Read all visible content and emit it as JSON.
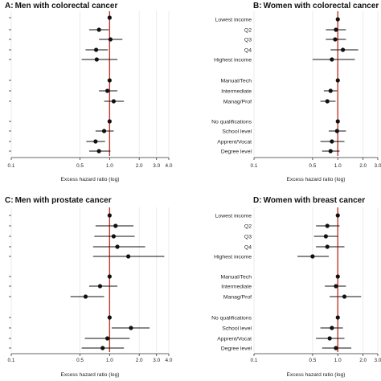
{
  "chart_data": [
    {
      "type": "scatter",
      "letter": "A:",
      "title": "Men with colorectal cancer",
      "xlabel": "Excess hazard ratio (log)",
      "xscale": "log",
      "xticks": [
        0.1,
        0.5,
        1.0,
        2.0,
        3.0,
        4.0
      ],
      "tick_labels": [
        "0.1",
        "0.5",
        "1.0",
        "2.0",
        "3.0",
        "4.0"
      ],
      "reference_line": 1.0,
      "row_labels": [],
      "groups": [
        [
          {
            "hr": 1.0,
            "lo": 1.0,
            "hi": 1.0
          },
          {
            "hr": 0.78,
            "lo": 0.62,
            "hi": 0.98
          },
          {
            "hr": 1.02,
            "lo": 0.78,
            "hi": 1.35
          },
          {
            "hr": 0.73,
            "lo": 0.57,
            "hi": 0.96
          },
          {
            "hr": 0.74,
            "lo": 0.52,
            "hi": 1.2
          }
        ],
        [
          {
            "hr": 1.0,
            "lo": 1.0,
            "hi": 1.0
          },
          {
            "hr": 0.95,
            "lo": 0.78,
            "hi": 1.2
          },
          {
            "hr": 1.1,
            "lo": 0.88,
            "hi": 1.4
          }
        ],
        [
          {
            "hr": 1.0,
            "lo": 1.0,
            "hi": 1.0
          },
          {
            "hr": 0.88,
            "lo": 0.72,
            "hi": 1.1
          },
          {
            "hr": 0.72,
            "lo": 0.58,
            "hi": 0.9
          },
          {
            "hr": 0.78,
            "lo": 0.62,
            "hi": 1.02
          }
        ]
      ]
    },
    {
      "type": "scatter",
      "letter": "B:",
      "title": "Women with colorectal cancer",
      "xlabel": "Excess hazard ratio (log)",
      "xscale": "log",
      "xticks": [
        0.1,
        0.5,
        1.0,
        2.0,
        3.0
      ],
      "tick_labels": [
        "0.1",
        "0.5",
        "1.0",
        "2.0",
        "3.0"
      ],
      "reference_line": 1.0,
      "row_labels": [
        [
          "Lowest income",
          "Q2",
          "Q3",
          "Q4",
          "Highest income"
        ],
        [
          "Manual/Tech",
          "Intermediate",
          "Manag/Prof"
        ],
        [
          "No qualifications",
          "School level",
          "Apprent/Vocat",
          "Degree level"
        ]
      ],
      "groups": [
        [
          {
            "hr": 1.0,
            "lo": 1.0,
            "hi": 1.0
          },
          {
            "hr": 0.95,
            "lo": 0.72,
            "hi": 1.25
          },
          {
            "hr": 0.93,
            "lo": 0.72,
            "hi": 1.25
          },
          {
            "hr": 1.15,
            "lo": 0.82,
            "hi": 1.75
          },
          {
            "hr": 0.85,
            "lo": 0.5,
            "hi": 1.6
          }
        ],
        [
          {
            "hr": 1.0,
            "lo": 1.0,
            "hi": 1.0
          },
          {
            "hr": 0.82,
            "lo": 0.68,
            "hi": 0.98
          },
          {
            "hr": 0.75,
            "lo": 0.62,
            "hi": 0.94
          }
        ],
        [
          {
            "hr": 1.0,
            "lo": 1.0,
            "hi": 1.0
          },
          {
            "hr": 0.98,
            "lo": 0.78,
            "hi": 1.25
          },
          {
            "hr": 0.85,
            "lo": 0.62,
            "hi": 1.2
          },
          {
            "hr": 0.82,
            "lo": 0.65,
            "hi": 1.05
          }
        ]
      ]
    },
    {
      "type": "scatter",
      "letter": "C:",
      "title": "Men with prostate cancer",
      "xlabel": "Excess hazard ratio (log)",
      "xscale": "log",
      "xticks": [
        0.1,
        0.5,
        1.0,
        2.0,
        3.0,
        4.0
      ],
      "tick_labels": [
        "0.1",
        "0.5",
        "1.0",
        "2.0",
        "3.0",
        "4.0"
      ],
      "reference_line": 1.0,
      "row_labels": [],
      "groups": [
        [
          {
            "hr": 1.0,
            "lo": 1.0,
            "hi": 1.0
          },
          {
            "hr": 1.15,
            "lo": 0.72,
            "hi": 1.75
          },
          {
            "hr": 1.1,
            "lo": 0.7,
            "hi": 1.8
          },
          {
            "hr": 1.2,
            "lo": 0.68,
            "hi": 2.3
          },
          {
            "hr": 1.55,
            "lo": 0.68,
            "hi": 3.6
          }
        ],
        [
          {
            "hr": 1.0,
            "lo": 1.0,
            "hi": 1.0
          },
          {
            "hr": 0.8,
            "lo": 0.62,
            "hi": 1.2
          },
          {
            "hr": 0.57,
            "lo": 0.4,
            "hi": 0.88
          }
        ],
        [
          {
            "hr": 1.0,
            "lo": 1.0,
            "hi": 1.0
          },
          {
            "hr": 1.65,
            "lo": 1.05,
            "hi": 2.55
          },
          {
            "hr": 0.95,
            "lo": 0.56,
            "hi": 1.6
          },
          {
            "hr": 0.85,
            "lo": 0.52,
            "hi": 1.4
          }
        ]
      ]
    },
    {
      "type": "scatter",
      "letter": "D:",
      "title": "Women with breast cancer",
      "xlabel": "Excess hazard ratio (log)",
      "xscale": "log",
      "xticks": [
        0.1,
        0.5,
        1.0,
        2.0,
        3.0
      ],
      "tick_labels": [
        "0.1",
        "0.5",
        "1.0",
        "2.0",
        "3.0"
      ],
      "reference_line": 1.0,
      "row_labels": [
        [
          "Lowest income",
          "Q2",
          "Q3",
          "Q4",
          "Highest income"
        ],
        [
          "Manual/Tech",
          "Intermediate",
          "Manag/Prof"
        ],
        [
          "No qualifications",
          "School level",
          "Apprent/Vocat",
          "Degree level"
        ]
      ],
      "groups": [
        [
          {
            "hr": 1.0,
            "lo": 1.0,
            "hi": 1.0
          },
          {
            "hr": 0.75,
            "lo": 0.55,
            "hi": 1.05
          },
          {
            "hr": 0.72,
            "lo": 0.52,
            "hi": 1.0
          },
          {
            "hr": 0.75,
            "lo": 0.55,
            "hi": 1.2
          },
          {
            "hr": 0.5,
            "lo": 0.33,
            "hi": 0.78
          }
        ],
        [
          {
            "hr": 1.0,
            "lo": 1.0,
            "hi": 1.0
          },
          {
            "hr": 0.95,
            "lo": 0.7,
            "hi": 1.25
          },
          {
            "hr": 1.2,
            "lo": 0.8,
            "hi": 1.9
          }
        ],
        [
          {
            "hr": 1.0,
            "lo": 1.0,
            "hi": 1.0
          },
          {
            "hr": 0.85,
            "lo": 0.62,
            "hi": 1.15
          },
          {
            "hr": 0.8,
            "lo": 0.55,
            "hi": 1.2
          },
          {
            "hr": 0.95,
            "lo": 0.65,
            "hi": 1.45
          }
        ]
      ]
    }
  ],
  "colors": {
    "reference_line": "#c0392b",
    "points": "#111111",
    "grid": "#e6e6e6",
    "axis": "#333333"
  }
}
